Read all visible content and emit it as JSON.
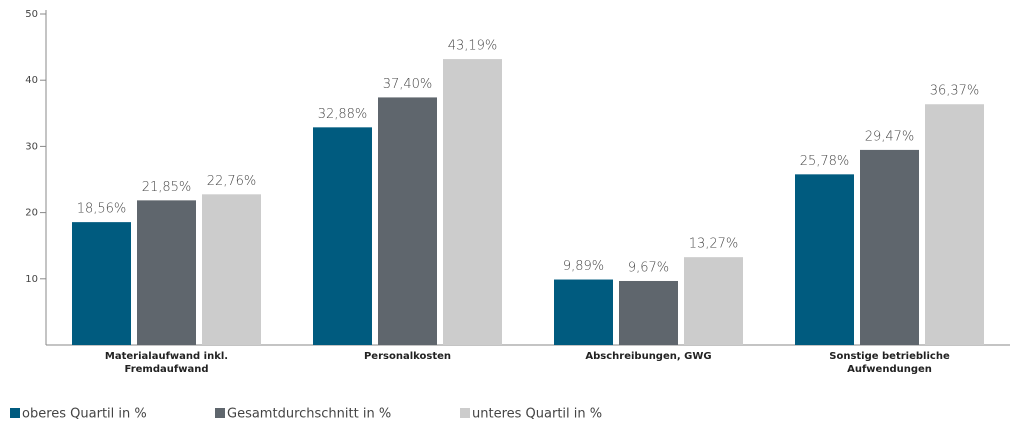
{
  "chart_data": {
    "type": "bar",
    "categories": [
      "Materialaufwand inkl. Fremdaufwand",
      "Personalkosten",
      "Abschreibungen, GWG",
      "Sonstige betriebliche Aufwendungen"
    ],
    "series": [
      {
        "name": "oberes Quartil in %",
        "color": "#005b7f",
        "values": [
          18.56,
          32.88,
          9.89,
          25.78
        ],
        "value_labels": [
          "18,56%",
          "32,88%",
          "9,89%",
          "25,78%"
        ]
      },
      {
        "name": "Gesamtdurchschnitt in %",
        "color": "#5f666d",
        "values": [
          21.85,
          37.4,
          9.67,
          29.47
        ],
        "value_labels": [
          "21,85%",
          "37,40%",
          "9,67%",
          "29,47%"
        ]
      },
      {
        "name": "unteres Quartil in %",
        "color": "#cccccc",
        "values": [
          22.76,
          43.19,
          13.27,
          36.37
        ],
        "value_labels": [
          "22,76%",
          "43,19%",
          "13,27%",
          "36,37%"
        ]
      }
    ],
    "ylim": [
      0,
      50
    ],
    "yticks": [
      10,
      20,
      30,
      40,
      50
    ],
    "legend": "bottom"
  }
}
